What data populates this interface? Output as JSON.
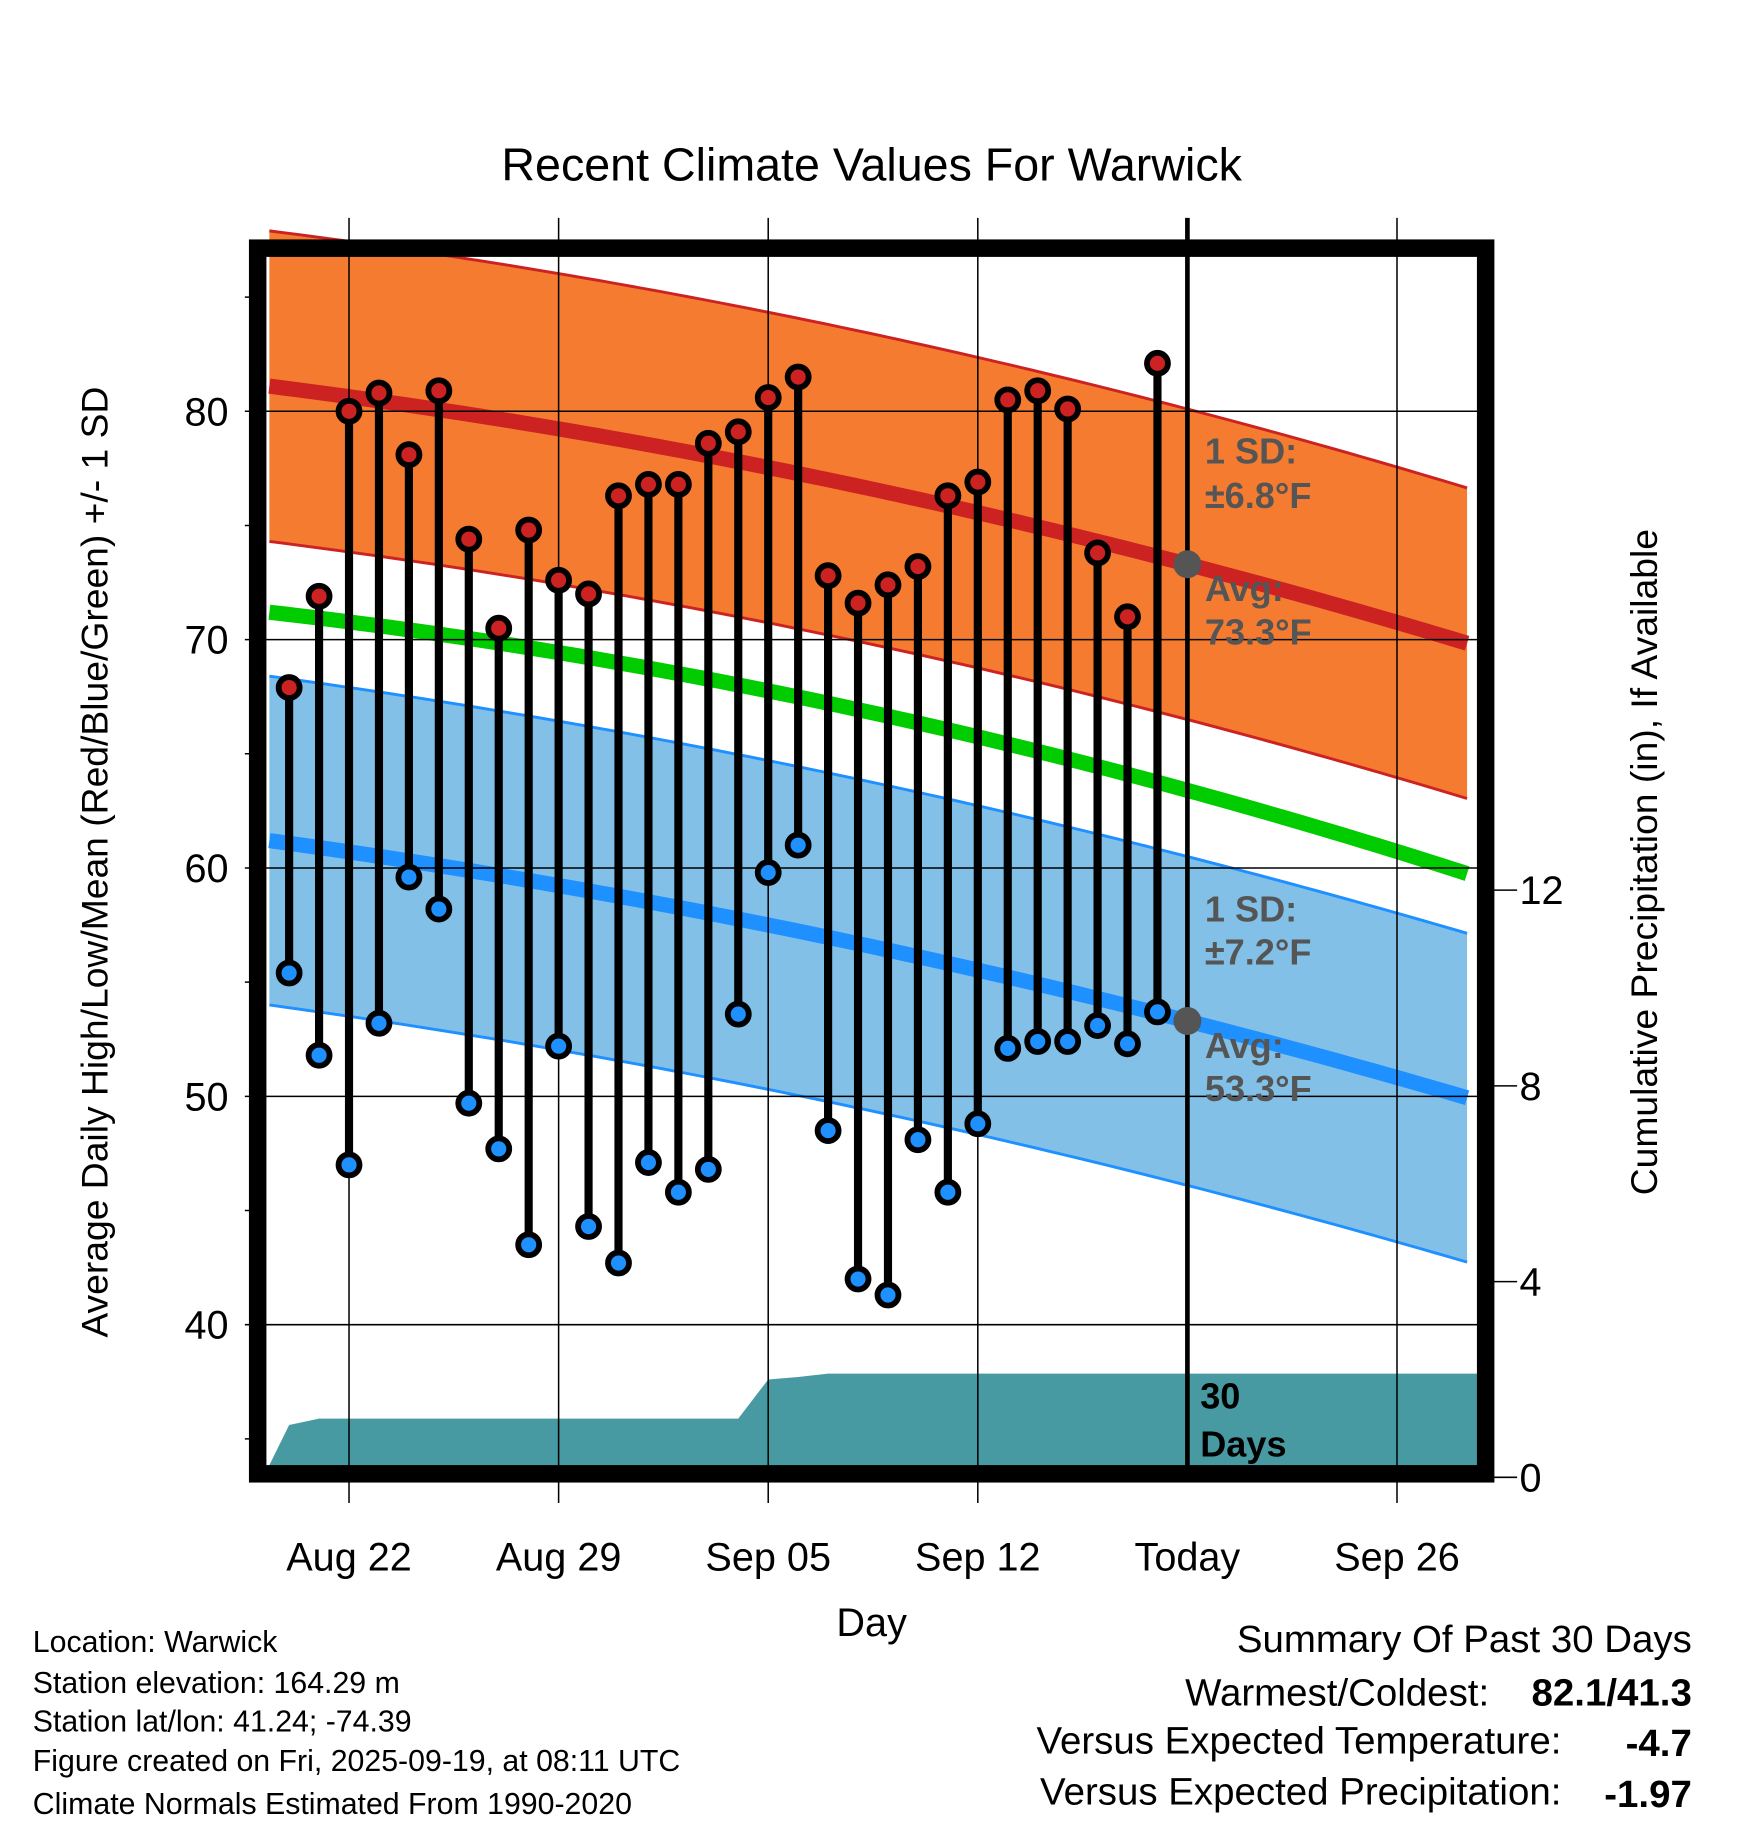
{
  "chart_data": {
    "type": "line",
    "title": "Recent Climate Values For Warwick",
    "xlabel": "Day",
    "ylabel": "Average Daily High/Low/Mean (Red/Blue/Green) +/- 1 SD",
    "ylabel_right": "Cumulative Precipitation (in), If Available",
    "ylim": [
      33.3,
      87.3
    ],
    "y_ticks": [
      40,
      50,
      60,
      70,
      80
    ],
    "y2lim": [
      0,
      12.6
    ],
    "y2_ticks": [
      0,
      4,
      8,
      12
    ],
    "x_ticks": [
      {
        "day": 2,
        "label": "Aug 22"
      },
      {
        "day": 9,
        "label": "Aug 29"
      },
      {
        "day": 16,
        "label": "Sep 05"
      },
      {
        "day": 23,
        "label": "Sep 12"
      },
      {
        "day": 30,
        "label": "Today"
      },
      {
        "day": 37,
        "label": "Sep 26"
      }
    ],
    "xlim": [
      -0.66,
      39.7
    ],
    "grid": true,
    "today_day": 30,
    "days": [
      "Aug 20",
      "Aug 21",
      "Aug 22",
      "Aug 23",
      "Aug 24",
      "Aug 25",
      "Aug 26",
      "Aug 27",
      "Aug 28",
      "Aug 29",
      "Aug 30",
      "Aug 31",
      "Sep 01",
      "Sep 02",
      "Sep 03",
      "Sep 04",
      "Sep 05",
      "Sep 06",
      "Sep 07",
      "Sep 08",
      "Sep 09",
      "Sep 10",
      "Sep 11",
      "Sep 12",
      "Sep 13",
      "Sep 14",
      "Sep 15",
      "Sep 16",
      "Sep 17",
      "Sep 18"
    ],
    "series": [
      {
        "name": "Daily High",
        "color": "#CC2222",
        "values": [
          67.9,
          71.9,
          80.0,
          80.8,
          78.1,
          80.9,
          74.4,
          70.5,
          74.8,
          72.6,
          72.0,
          76.3,
          76.8,
          76.8,
          78.6,
          79.1,
          80.6,
          81.5,
          72.8,
          71.6,
          72.4,
          73.2,
          76.3,
          76.9,
          80.5,
          80.9,
          80.1,
          73.8,
          71.0,
          82.1
        ]
      },
      {
        "name": "Daily Low",
        "color": "#1E90FF",
        "values": [
          55.4,
          51.8,
          47.0,
          53.2,
          59.6,
          58.2,
          49.7,
          47.7,
          43.5,
          52.2,
          44.3,
          42.7,
          47.1,
          45.8,
          46.8,
          53.6,
          59.8,
          61.0,
          48.5,
          42.0,
          41.3,
          48.1,
          45.8,
          48.8,
          52.1,
          52.4,
          52.4,
          53.1,
          52.3,
          53.7
        ]
      }
    ],
    "normals": {
      "days": [
        -0.66,
        30,
        39.7
      ],
      "avg_high": [
        81.1,
        73.3,
        69.7
      ],
      "high_sd": 6.8,
      "avg_mean": [
        71.2,
        63.4,
        59.6
      ],
      "avg_low": [
        61.2,
        53.3,
        49.8
      ],
      "low_sd": 7.2
    },
    "precip": {
      "days": [
        -0.66,
        0,
        1,
        15,
        16,
        17,
        18,
        39.7
      ],
      "values": [
        0.25,
        1.07,
        1.2,
        1.2,
        2.0,
        2.05,
        2.12,
        2.12
      ],
      "color": "#479AA2"
    },
    "annotations": {
      "high_sd_line1": "1 SD:",
      "high_sd_line2": "±6.8°F",
      "high_avg_line1": "Avg:",
      "high_avg_line2": "73.3°F",
      "low_sd_line1": "1 SD:",
      "low_sd_line2": "±7.2°F",
      "low_avg_line1": "Avg:",
      "low_avg_line2": "53.3°F",
      "days_line1": "30",
      "days_line2": "Days"
    },
    "colors": {
      "high_band": "#F47B30",
      "high_line": "#CC2222",
      "low_band": "#82C0E8",
      "low_line": "#1E90FF",
      "mean_line": "#00CC00",
      "precip": "#479AA2"
    }
  },
  "footer": {
    "location": "Location: Warwick",
    "elevation": "Station elevation: 164.29 m",
    "latlon": "Station lat/lon: 41.24; -74.39",
    "created": "Figure created on Fri, 2025-09-19, at 08:11 UTC",
    "normals": "Climate Normals Estimated From 1990-2020"
  },
  "summary": {
    "title": "Summary Of Past 30 Days",
    "warmest_label": "Warmest/Coldest:",
    "warmest_value": "82.1/41.3",
    "temp_label": "Versus Expected Temperature:",
    "temp_value": "-4.7",
    "temp_color": "#1E90FF",
    "precip_label": "Versus Expected Precipitation:",
    "precip_value": "-1.97",
    "precip_color": "#A0522D"
  }
}
